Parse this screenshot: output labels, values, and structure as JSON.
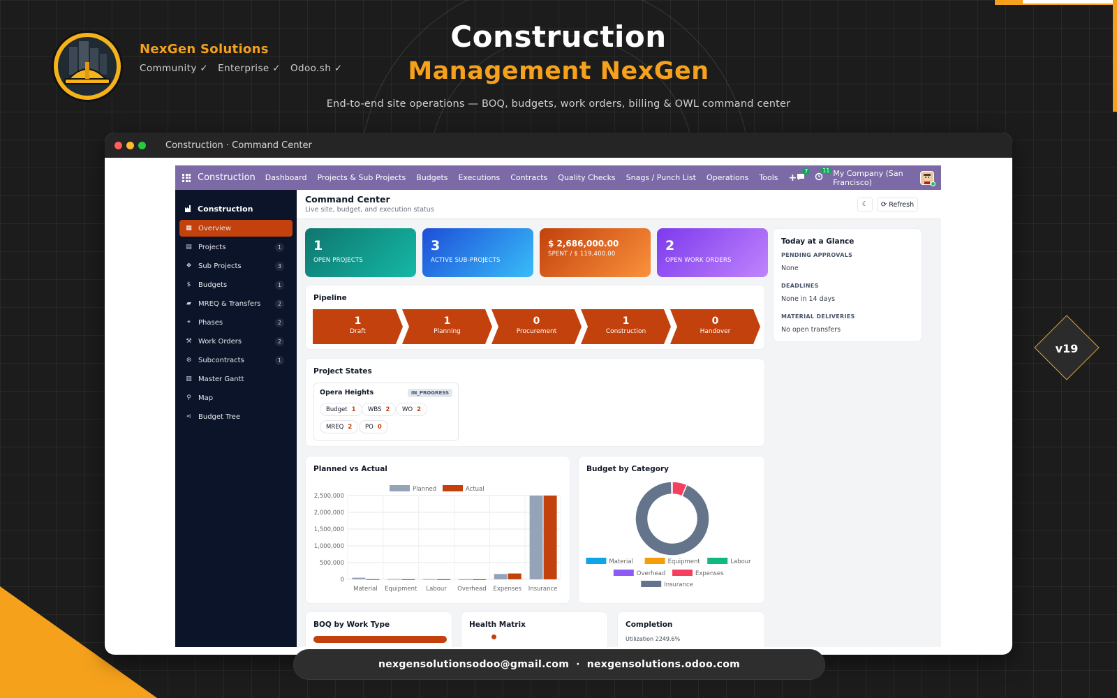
{
  "brand": {
    "name": "NexGen Solutions",
    "editions": [
      "Community ✓",
      "Enterprise ✓",
      "Odoo.sh ✓"
    ],
    "title_line1": "Construction",
    "title_line2": "Management NexGen",
    "subtitle": "End-to-end site operations — BOQ, budgets, work orders, billing & OWL command center",
    "version": "v19",
    "footer_email": "nexgensolutionsodoo@gmail.com",
    "footer_separator": "·",
    "footer_site": "nexgensolutions.odoo.com",
    "accent": "#f5a11c"
  },
  "window": {
    "title": "Construction · Command Center"
  },
  "topnav": {
    "app_name": "Construction",
    "menus": [
      "Dashboard",
      "Projects & Sub Projects",
      "Budgets",
      "Executions",
      "Contracts",
      "Quality Checks",
      "Snags / Punch List",
      "Operations",
      "Tools"
    ],
    "add_icon": "plus-icon",
    "messages_count": "7",
    "activities_count": "11",
    "company": "My Company (San Francisco)",
    "color": "#7b6aa6"
  },
  "sidebar": {
    "heading": "Construction",
    "items": [
      {
        "label": "Overview",
        "icon": "grid-icon",
        "count": ""
      },
      {
        "label": "Projects",
        "icon": "building-icon",
        "count": "1"
      },
      {
        "label": "Sub Projects",
        "icon": "cubes-icon",
        "count": "3"
      },
      {
        "label": "Budgets",
        "icon": "dollar-icon",
        "count": "1"
      },
      {
        "label": "MREQ & Transfers",
        "icon": "truck-icon",
        "count": "2"
      },
      {
        "label": "Phases",
        "icon": "sitemap-icon",
        "count": "2"
      },
      {
        "label": "Work Orders",
        "icon": "wrench-icon",
        "count": "2"
      },
      {
        "label": "Subcontracts",
        "icon": "handshake-icon",
        "count": "1"
      },
      {
        "label": "Master Gantt",
        "icon": "bar-chart-icon",
        "count": ""
      },
      {
        "label": "Map",
        "icon": "map-pin-icon",
        "count": ""
      },
      {
        "label": "Budget Tree",
        "icon": "share-icon",
        "count": ""
      }
    ],
    "active_color": "#c2410c"
  },
  "command_center": {
    "title": "Command Center",
    "subtitle": "Live site, budget, and execution status",
    "refresh_label": "Refresh"
  },
  "kpis": [
    {
      "value": "1",
      "label": "OPEN PROJECTS"
    },
    {
      "value": "3",
      "label": "ACTIVE SUB-PROJECTS"
    },
    {
      "value": "$ 2,686,000.00",
      "label": "SPENT / $ 119,400.00"
    },
    {
      "value": "2",
      "label": "OPEN WORK ORDERS"
    }
  ],
  "pipeline": {
    "title": "Pipeline",
    "stages": [
      {
        "count": "1",
        "label": "Draft"
      },
      {
        "count": "1",
        "label": "Planning"
      },
      {
        "count": "0",
        "label": "Procurement"
      },
      {
        "count": "1",
        "label": "Construction"
      },
      {
        "count": "0",
        "label": "Handover"
      }
    ]
  },
  "project_states": {
    "title": "Project States",
    "project": {
      "name": "Opera Heights",
      "state": "IN_PROGRESS",
      "pills": [
        {
          "label": "Budget",
          "value": "1"
        },
        {
          "label": "WBS",
          "value": "2"
        },
        {
          "label": "WO",
          "value": "2"
        },
        {
          "label": "MREQ",
          "value": "2"
        },
        {
          "label": "PO",
          "value": "0"
        }
      ]
    }
  },
  "glance": {
    "title": "Today at a Glance",
    "sections": [
      {
        "heading": "PENDING APPROVALS",
        "value": "None"
      },
      {
        "heading": "DEADLINES",
        "value": "None in 14 days"
      },
      {
        "heading": "MATERIAL DELIVERIES",
        "value": "No open transfers"
      }
    ]
  },
  "bottom_cards": {
    "boq": "BOQ by Work Type",
    "health": "Health Matrix",
    "completion": "Completion",
    "completion_partial": "Utilization 2249.6%"
  },
  "chart_data": [
    {
      "type": "bar",
      "title": "Planned vs Actual",
      "categories": [
        "Material",
        "Equipment",
        "Labour",
        "Overhead",
        "Expenses",
        "Insurance"
      ],
      "series": [
        {
          "name": "Planned",
          "values": [
            50000,
            10000,
            8000,
            3000,
            160000,
            2500000
          ],
          "color": "#94a3b8"
        },
        {
          "name": "Actual",
          "values": [
            5000,
            3000,
            2000,
            1000,
            175000,
            2500000
          ],
          "color": "#c2410c"
        }
      ],
      "yticks": [
        "2,500,000",
        "2,000,000",
        "1,500,000",
        "1,000,000",
        "500,000",
        "0"
      ],
      "ylim": [
        0,
        2500000
      ],
      "legend": "top",
      "grid": true
    },
    {
      "type": "pie",
      "title": "Budget by Category",
      "donut": true,
      "categories": [
        "Material",
        "Equipment",
        "Labour",
        "Overhead",
        "Expenses",
        "Insurance"
      ],
      "colors": [
        "#0ea5e9",
        "#f59e0b",
        "#10b981",
        "#8b5cf6",
        "#f43f5e",
        "#64748b"
      ],
      "values": [
        0.2,
        0.05,
        0.05,
        0.05,
        6.5,
        93.15
      ],
      "legend": "bottom"
    }
  ]
}
